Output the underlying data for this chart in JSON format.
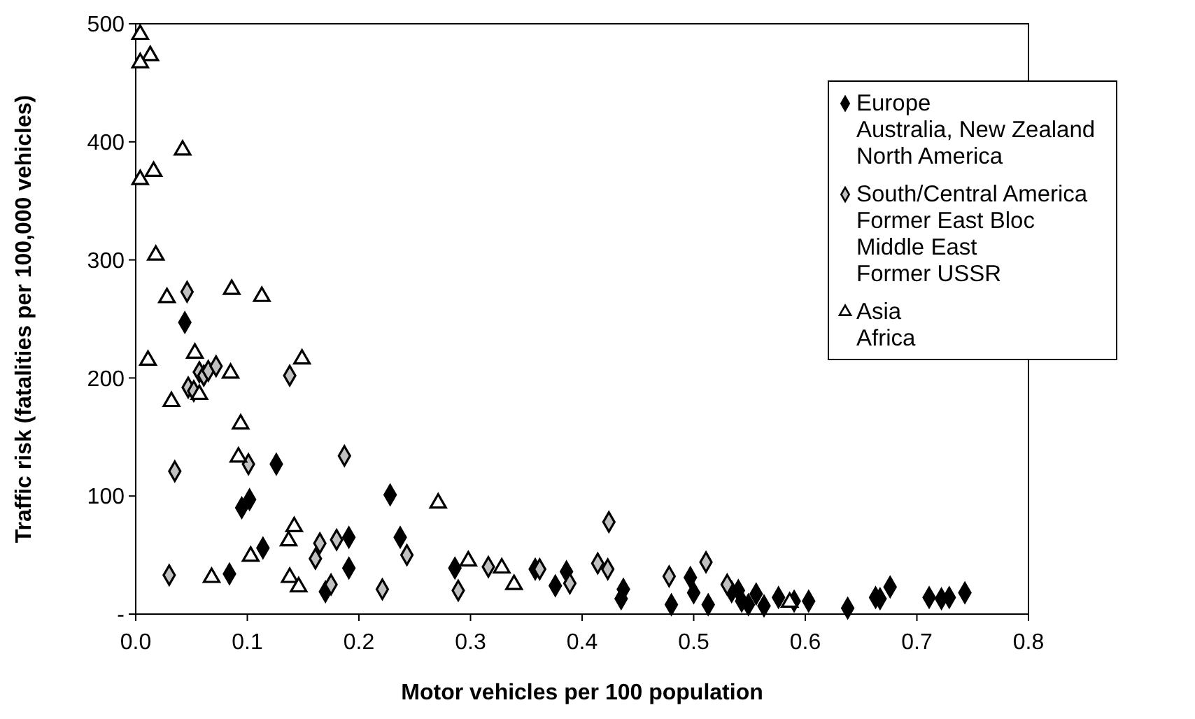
{
  "chart_data": {
    "type": "scatter",
    "xlabel": "Motor vehicles per 100 population",
    "ylabel": "Traffic risk (fatalities per 100,000 vehicles)",
    "xlim": [
      0,
      0.8
    ],
    "ylim": [
      0,
      500
    ],
    "xticks": [
      {
        "value": 0,
        "label": "0.0"
      },
      0.1,
      0.2,
      0.3,
      0.4,
      0.5,
      0.6,
      0.7,
      0.8
    ],
    "yticks": [
      {
        "value": 0,
        "label": "-"
      },
      100,
      200,
      300,
      400,
      500
    ],
    "grid": false,
    "legend": "top right",
    "series": [
      {
        "name": "Europe\nAustralia, New Zealand\nNorth America",
        "color": "#000000",
        "marker": "diamond",
        "x": [
          0.044,
          0.126,
          0.095,
          0.102,
          0.228,
          0.191,
          0.237,
          0.191,
          0.084,
          0.114,
          0.17,
          0.286,
          0.358,
          0.376,
          0.386,
          0.437,
          0.435,
          0.48,
          0.497,
          0.5,
          0.513,
          0.534,
          0.54,
          0.543,
          0.549,
          0.556,
          0.563,
          0.576,
          0.59,
          0.603,
          0.638,
          0.663,
          0.667,
          0.676,
          0.711,
          0.722,
          0.729,
          0.743
        ],
        "values": [
          247,
          127,
          90,
          97,
          101,
          65,
          65,
          39,
          34,
          56,
          19,
          39,
          38,
          24,
          36,
          21,
          13,
          8,
          31,
          18,
          8,
          19,
          20,
          11,
          8,
          17,
          7,
          14,
          11,
          11,
          5,
          14,
          13,
          23,
          14,
          13,
          14,
          18
        ]
      },
      {
        "name": "South/Central America\nFormer East Bloc\nMiddle East\nFormer USSR",
        "color": "#c0c0c0",
        "marker": "diamond",
        "x": [
          0.046,
          0.057,
          0.061,
          0.065,
          0.072,
          0.047,
          0.052,
          0.138,
          0.035,
          0.101,
          0.187,
          0.165,
          0.18,
          0.243,
          0.161,
          0.03,
          0.175,
          0.221,
          0.289,
          0.316,
          0.362,
          0.389,
          0.424,
          0.414,
          0.423,
          0.478,
          0.511,
          0.53
        ],
        "values": [
          273,
          205,
          202,
          206,
          210,
          192,
          189,
          202,
          121,
          127,
          134,
          60,
          63,
          50,
          47,
          33,
          25,
          21,
          20,
          40,
          38,
          26,
          78,
          43,
          38,
          32,
          44,
          25
        ]
      },
      {
        "name": "Asia\nAfrica",
        "color": "#ffffff",
        "marker": "triangle",
        "x": [
          0.004,
          0.013,
          0.004,
          0.042,
          0.004,
          0.016,
          0.018,
          0.028,
          0.086,
          0.113,
          0.011,
          0.053,
          0.032,
          0.057,
          0.085,
          0.149,
          0.094,
          0.092,
          0.142,
          0.137,
          0.103,
          0.068,
          0.138,
          0.146,
          0.298,
          0.328,
          0.339,
          0.586,
          0.271
        ],
        "values": [
          491,
          473,
          467,
          393,
          368,
          375,
          304,
          268,
          275,
          269,
          215,
          221,
          180,
          186,
          204,
          216,
          161,
          133,
          74,
          62,
          49,
          31,
          31,
          23,
          45,
          39,
          25,
          10,
          94
        ]
      }
    ]
  }
}
